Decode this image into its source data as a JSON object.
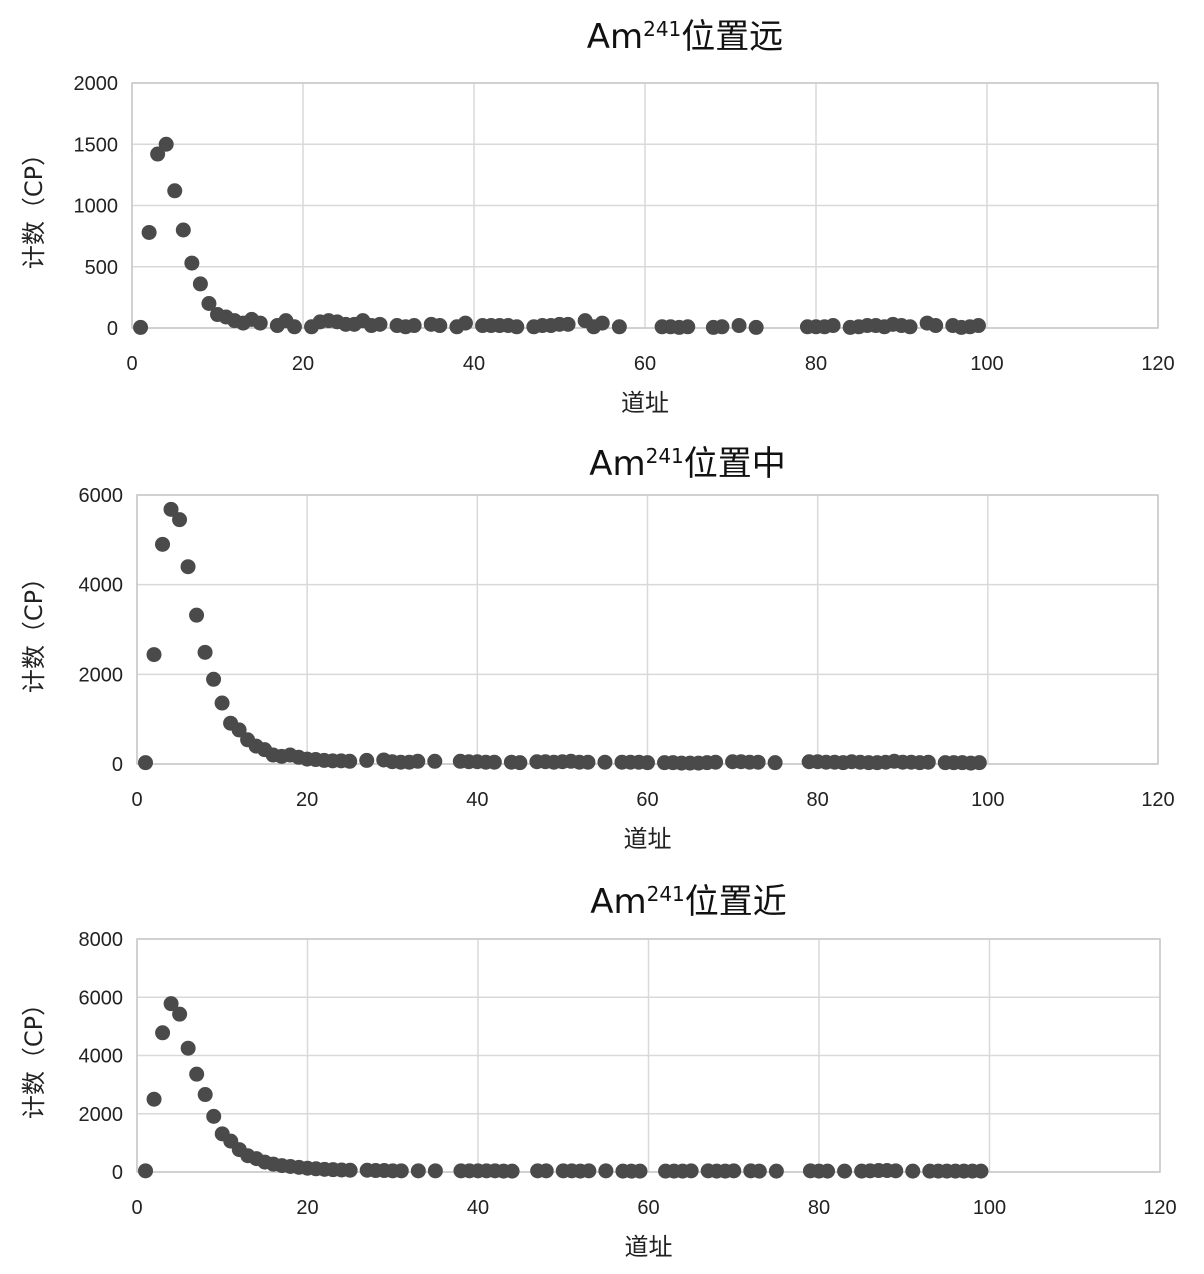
{
  "chart_data": [
    {
      "type": "scatter",
      "title": "Am",
      "title_sup": "241",
      "title_suffix": "位置远",
      "xlabel": "道址",
      "ylabel": "计数（CP）",
      "xlim": [
        0,
        120
      ],
      "ylim": [
        0,
        2000
      ],
      "xticks": [
        "0",
        "20",
        "40",
        "60",
        "80",
        "100",
        "120"
      ],
      "yticks": [
        "0",
        "500",
        "1000",
        "1500",
        "2000"
      ],
      "grid": true,
      "marker_color": "#4a4a4a",
      "x": [
        1,
        2,
        3,
        4,
        5,
        6,
        7,
        8,
        9,
        10,
        11,
        12,
        13,
        14,
        15,
        17,
        18,
        19,
        21,
        22,
        23,
        24,
        25,
        26,
        27,
        28,
        29,
        31,
        32,
        33,
        35,
        36,
        38,
        39,
        41,
        42,
        43,
        44,
        45,
        47,
        48,
        49,
        50,
        51,
        53,
        54,
        55,
        57,
        62,
        63,
        64,
        65,
        68,
        69,
        71,
        73,
        79,
        80,
        81,
        82,
        84,
        85,
        86,
        87,
        88,
        89,
        90,
        91,
        93,
        94,
        96,
        97,
        98,
        99
      ],
      "y": [
        5,
        780,
        1420,
        1500,
        1120,
        800,
        530,
        360,
        200,
        110,
        90,
        60,
        40,
        70,
        40,
        20,
        60,
        10,
        10,
        50,
        60,
        50,
        30,
        30,
        60,
        20,
        30,
        20,
        10,
        20,
        30,
        20,
        10,
        40,
        20,
        20,
        20,
        20,
        10,
        10,
        20,
        20,
        30,
        30,
        60,
        10,
        40,
        10,
        10,
        10,
        5,
        10,
        5,
        10,
        20,
        5,
        10,
        10,
        10,
        20,
        5,
        10,
        20,
        20,
        10,
        30,
        20,
        10,
        40,
        20,
        20,
        5,
        10,
        20
      ]
    },
    {
      "type": "scatter",
      "title": "Am",
      "title_sup": "241",
      "title_suffix": "位置中",
      "xlabel": "道址",
      "ylabel": "计数（CP）",
      "xlim": [
        0,
        120
      ],
      "ylim": [
        0,
        6000
      ],
      "xticks": [
        "0",
        "20",
        "40",
        "60",
        "80",
        "100",
        "120"
      ],
      "yticks": [
        "0",
        "2000",
        "4000",
        "6000"
      ],
      "grid": true,
      "marker_color": "#4a4a4a",
      "x": [
        1,
        2,
        3,
        4,
        5,
        6,
        7,
        8,
        9,
        10,
        11,
        12,
        13,
        14,
        15,
        16,
        17,
        18,
        19,
        20,
        21,
        22,
        23,
        24,
        25,
        27,
        29,
        30,
        31,
        32,
        33,
        35,
        38,
        39,
        40,
        41,
        42,
        44,
        45,
        47,
        48,
        49,
        50,
        51,
        52,
        53,
        55,
        57,
        58,
        59,
        60,
        62,
        63,
        64,
        65,
        66,
        67,
        68,
        70,
        71,
        72,
        73,
        75,
        79,
        80,
        81,
        82,
        83,
        84,
        85,
        86,
        87,
        88,
        89,
        90,
        91,
        92,
        93,
        95,
        96,
        97,
        98,
        99
      ],
      "y": [
        30,
        2440,
        4900,
        5680,
        5450,
        4400,
        3320,
        2490,
        1890,
        1360,
        910,
        760,
        540,
        400,
        320,
        200,
        170,
        200,
        150,
        110,
        100,
        80,
        70,
        70,
        60,
        80,
        90,
        50,
        40,
        40,
        60,
        60,
        60,
        50,
        50,
        40,
        40,
        40,
        30,
        50,
        50,
        40,
        50,
        60,
        40,
        40,
        40,
        40,
        40,
        40,
        30,
        30,
        30,
        20,
        20,
        20,
        30,
        40,
        50,
        50,
        40,
        40,
        30,
        50,
        50,
        40,
        40,
        30,
        50,
        40,
        30,
        30,
        40,
        60,
        40,
        40,
        30,
        40,
        30,
        30,
        30,
        20,
        30
      ]
    },
    {
      "type": "scatter",
      "title": "Am",
      "title_sup": "241",
      "title_suffix": "位置近",
      "xlabel": "道址",
      "ylabel": "计数（CP）",
      "xlim": [
        0,
        120
      ],
      "ylim": [
        0,
        8000
      ],
      "xticks": [
        "0",
        "20",
        "40",
        "60",
        "80",
        "100",
        "120"
      ],
      "yticks": [
        "0",
        "2000",
        "4000",
        "6000",
        "8000"
      ],
      "grid": true,
      "marker_color": "#4a4a4a",
      "x": [
        1,
        2,
        3,
        4,
        5,
        6,
        7,
        8,
        9,
        10,
        11,
        12,
        13,
        14,
        15,
        16,
        17,
        18,
        19,
        20,
        21,
        22,
        23,
        24,
        25,
        27,
        28,
        29,
        30,
        31,
        33,
        35,
        38,
        39,
        40,
        41,
        42,
        43,
        44,
        47,
        48,
        50,
        51,
        52,
        53,
        55,
        57,
        58,
        59,
        62,
        63,
        64,
        65,
        67,
        68,
        69,
        70,
        72,
        73,
        75,
        79,
        80,
        81,
        83,
        85,
        86,
        87,
        88,
        89,
        91,
        93,
        94,
        95,
        96,
        97,
        98,
        99
      ],
      "y": [
        40,
        2500,
        4780,
        5780,
        5420,
        4250,
        3360,
        2660,
        1910,
        1310,
        1060,
        770,
        560,
        460,
        340,
        270,
        220,
        190,
        160,
        130,
        110,
        90,
        80,
        70,
        60,
        60,
        50,
        50,
        40,
        40,
        40,
        40,
        40,
        40,
        40,
        40,
        40,
        30,
        30,
        40,
        40,
        40,
        40,
        30,
        40,
        40,
        30,
        30,
        30,
        30,
        30,
        30,
        40,
        40,
        30,
        30,
        40,
        40,
        30,
        30,
        40,
        30,
        30,
        30,
        30,
        40,
        50,
        50,
        40,
        30,
        30,
        30,
        30,
        30,
        30,
        30,
        30
      ]
    }
  ]
}
